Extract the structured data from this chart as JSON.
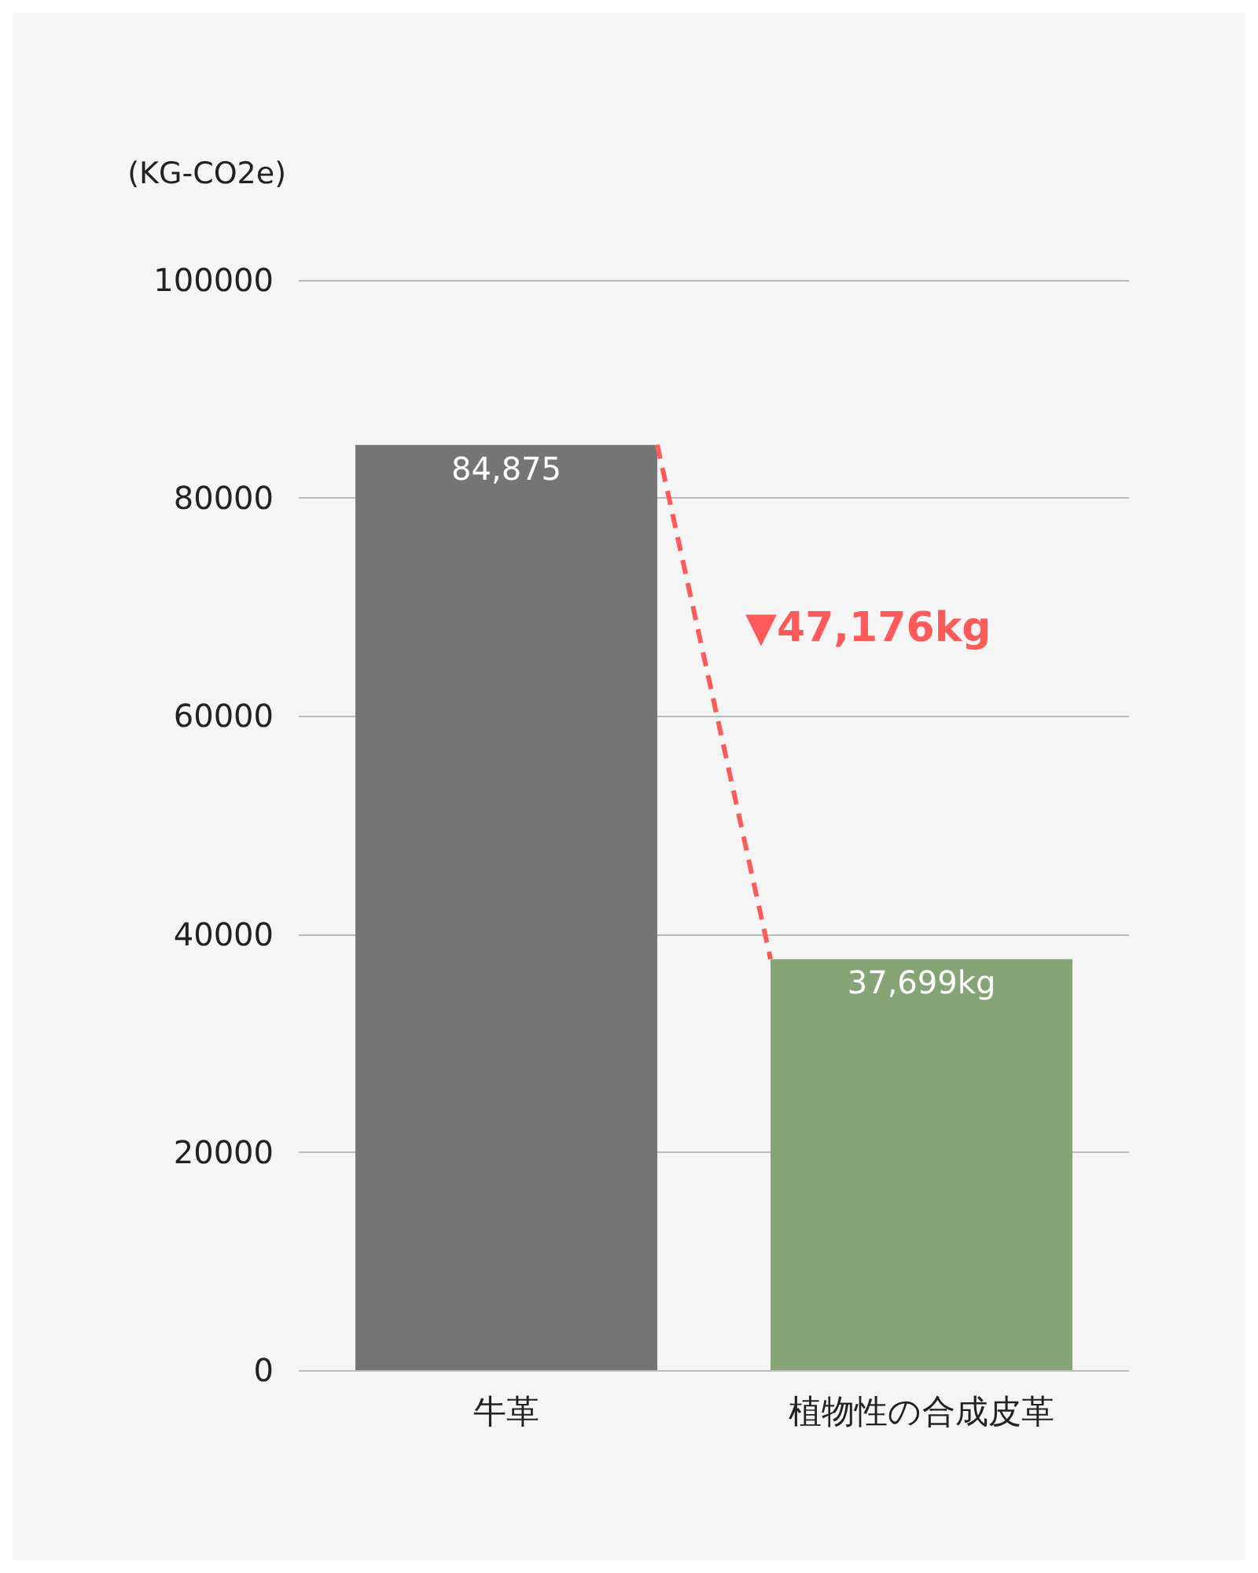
{
  "chart_data": {
    "type": "bar",
    "ylabel": "(KG-CO2e)",
    "categories": [
      "牛革",
      "植物性の合成皮革"
    ],
    "values": [
      84875,
      37699
    ],
    "colors": [
      "#757575",
      "#86a577"
    ],
    "value_labels": [
      "84,875",
      "37,699kg"
    ],
    "ylim": [
      0,
      100000
    ],
    "yticks": [
      0,
      20000,
      40000,
      60000,
      80000,
      100000
    ],
    "grid": "y",
    "annotations": [
      "▼47,176kg"
    ]
  }
}
